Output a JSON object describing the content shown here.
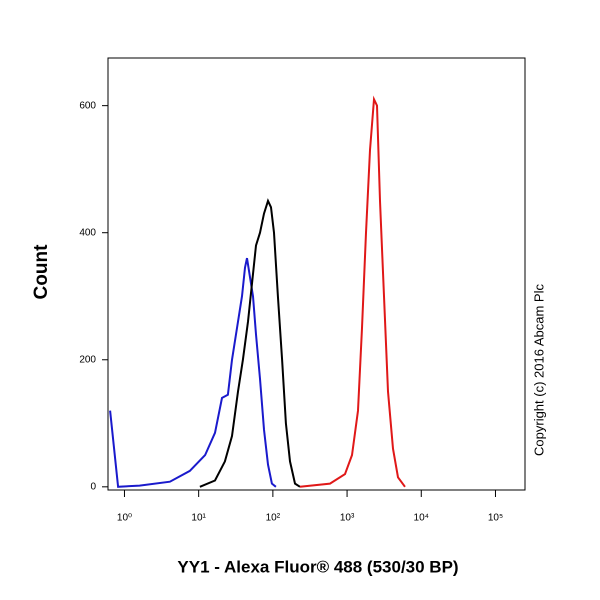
{
  "chart_data": {
    "type": "line",
    "xlabel": "YY1 - Alexa Fluor® 488 (530/30 BP)",
    "ylabel": "Count",
    "note": "Copyright (c) 2016 Abcam Plc",
    "xscale": "log",
    "xlim": [
      0.6,
      250000
    ],
    "xticks": [
      {
        "value": 1,
        "label": "10⁰"
      },
      {
        "value": 10,
        "label": "10¹"
      },
      {
        "value": 100,
        "label": "10²"
      },
      {
        "value": 1000,
        "label": "10³"
      },
      {
        "value": 10000,
        "label": "10⁴"
      },
      {
        "value": 100000,
        "label": "10⁵"
      }
    ],
    "ylim": [
      -5,
      675
    ],
    "yticks": [
      0,
      200,
      400,
      600
    ],
    "series": [
      {
        "color": "#1a1acc",
        "x": [
          0.64,
          0.82,
          1.6,
          4.1,
          7.6,
          12.2,
          16.6,
          20.6,
          24.8,
          28.1,
          32.9,
          38.4,
          42.1,
          44.8,
          49.2,
          54,
          59.3,
          67,
          76,
          86,
          97,
          110
        ],
        "values": [
          120,
          0,
          2,
          8,
          25,
          50,
          85,
          140,
          145,
          200,
          250,
          300,
          345,
          360,
          330,
          300,
          240,
          170,
          90,
          35,
          5,
          0
        ]
      },
      {
        "color": "#000000",
        "x": [
          10.4,
          16.6,
          22.6,
          28.1,
          33.9,
          39.5,
          46.2,
          52.3,
          59.3,
          67,
          76,
          86,
          94.4,
          103.5,
          117,
          133,
          150,
          170,
          199,
          232
        ],
        "values": [
          0,
          10,
          40,
          80,
          150,
          200,
          260,
          320,
          380,
          400,
          430,
          450,
          440,
          400,
          300,
          200,
          100,
          40,
          5,
          0
        ]
      },
      {
        "color": "#e01818",
        "x": [
          232,
          589,
          938,
          1164,
          1403,
          1589,
          1799,
          2037,
          2307,
          2530,
          2780,
          3148,
          3565,
          4159,
          4853,
          6039
        ],
        "values": [
          0,
          5,
          20,
          50,
          120,
          250,
          400,
          530,
          610,
          600,
          450,
          300,
          150,
          60,
          15,
          0
        ]
      }
    ]
  }
}
